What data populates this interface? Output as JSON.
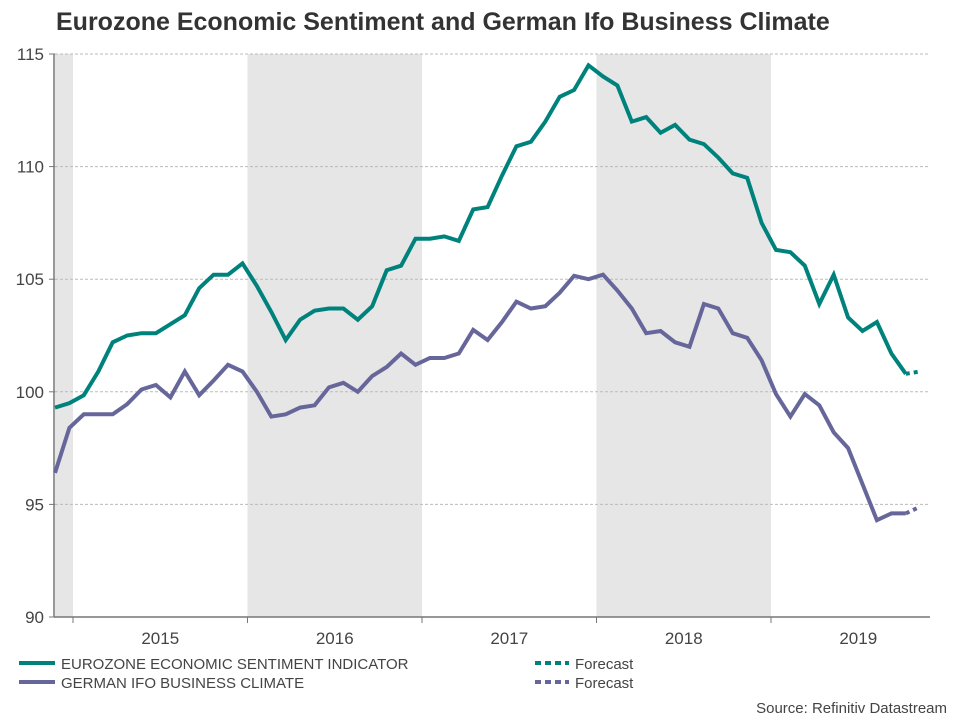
{
  "chart_data": {
    "type": "line",
    "title": "Eurozone Economic Sentiment and German Ifo Business Climate",
    "xlabel": "",
    "ylabel": "",
    "ylim": [
      90,
      115
    ],
    "yticks": [
      "90",
      "95",
      "100",
      "105",
      "110",
      "115"
    ],
    "xtick_labels": [
      "2015",
      "2016",
      "2017",
      "2018",
      "2019"
    ],
    "grid": "horizontal dotted",
    "shaded_years": [
      "2014",
      "2016",
      "2018"
    ],
    "legend_position": "bottom",
    "x": [
      "2014-11",
      "2014-12",
      "2015-01",
      "2015-02",
      "2015-03",
      "2015-04",
      "2015-05",
      "2015-06",
      "2015-07",
      "2015-08",
      "2015-09",
      "2015-10",
      "2015-11",
      "2015-12",
      "2016-01",
      "2016-02",
      "2016-03",
      "2016-04",
      "2016-05",
      "2016-06",
      "2016-07",
      "2016-08",
      "2016-09",
      "2016-10",
      "2016-11",
      "2016-12",
      "2017-01",
      "2017-02",
      "2017-03",
      "2017-04",
      "2017-05",
      "2017-06",
      "2017-07",
      "2017-08",
      "2017-09",
      "2017-10",
      "2017-11",
      "2017-12",
      "2018-01",
      "2018-02",
      "2018-03",
      "2018-04",
      "2018-05",
      "2018-06",
      "2018-07",
      "2018-08",
      "2018-09",
      "2018-10",
      "2018-11",
      "2018-12",
      "2019-01",
      "2019-02",
      "2019-03",
      "2019-04",
      "2019-05",
      "2019-06",
      "2019-07",
      "2019-08",
      "2019-09",
      "2019-10"
    ],
    "series": [
      {
        "name": "EUROZONE ECONOMIC SENTIMENT INDICATOR",
        "color": "#00827c",
        "values": [
          99.3,
          99.5,
          99.85,
          100.9,
          102.2,
          102.5,
          102.6,
          102.6,
          103.0,
          103.4,
          104.6,
          105.2,
          105.2,
          105.7,
          104.7,
          103.55,
          102.3,
          103.2,
          103.6,
          103.7,
          103.7,
          103.2,
          103.8,
          105.4,
          105.6,
          106.8,
          106.8,
          106.9,
          106.7,
          108.1,
          108.2,
          109.6,
          110.9,
          111.1,
          112.0,
          113.1,
          113.4,
          114.5,
          114.0,
          113.6,
          112.0,
          112.2,
          111.5,
          111.85,
          111.2,
          111.0,
          110.4,
          109.7,
          109.5,
          107.5,
          106.3,
          106.2,
          105.6,
          103.9,
          105.2,
          103.3,
          102.7,
          103.1,
          101.7,
          100.8
        ],
        "forecast": {
          "name": "Forecast",
          "x": [
            "2019-10",
            "2019-11"
          ],
          "values": [
            100.8,
            100.9
          ]
        }
      },
      {
        "name": "GERMAN IFO BUSINESS CLIMATE",
        "color": "#67669b",
        "values": [
          96.4,
          98.4,
          99.0,
          99.0,
          99.0,
          99.45,
          100.1,
          100.3,
          99.75,
          100.9,
          99.85,
          100.5,
          101.2,
          100.9,
          100.0,
          98.9,
          99.0,
          99.3,
          99.4,
          100.2,
          100.4,
          100.0,
          100.7,
          101.1,
          101.7,
          101.2,
          101.5,
          101.5,
          101.7,
          102.75,
          102.3,
          103.1,
          104.0,
          103.7,
          103.8,
          104.4,
          105.15,
          105.0,
          105.2,
          104.5,
          103.7,
          102.6,
          102.7,
          102.2,
          102.0,
          103.9,
          103.7,
          102.6,
          102.4,
          101.4,
          99.9,
          98.9,
          99.9,
          99.4,
          98.2,
          97.5,
          95.9,
          94.3,
          94.6,
          94.6
        ],
        "forecast": {
          "name": "Forecast",
          "x": [
            "2019-10",
            "2019-11"
          ],
          "values": [
            94.6,
            94.9
          ]
        }
      }
    ],
    "source": "Source: Refinitiv Datastream"
  }
}
